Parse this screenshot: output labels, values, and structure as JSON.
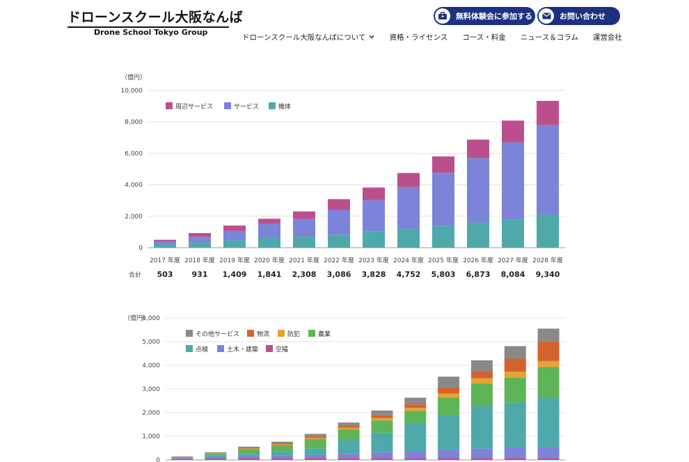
{
  "header": {
    "logo_jp": "ドローンスクール大阪なんば",
    "logo_en": "Drone School Tokyo Group",
    "btn_trial": "無料体験会に参加する",
    "btn_contact": "お問い合わせ",
    "nav": [
      "ドローンスクール大阪なんばについて",
      "資格・ライセンス",
      "コース・料金",
      "ニュース＆コラム",
      "運営会社"
    ]
  },
  "chart_data": [
    {
      "type": "bar",
      "stacked": true,
      "unit_label": "（億円）",
      "categories": [
        "2017 年度",
        "2018 年度",
        "2019 年度",
        "2020 年度",
        "2021 年度",
        "2022 年度",
        "2023 年度",
        "2024 年度",
        "2025 年度",
        "2026 年度",
        "2027 年度",
        "2028 年度"
      ],
      "series": [
        {
          "name": "機体",
          "color": "#4fa9ab",
          "values": [
            200,
            320,
            470,
            620,
            700,
            810,
            1050,
            1200,
            1400,
            1600,
            1800,
            2100
          ]
        },
        {
          "name": "サービス",
          "color": "#7b84d8",
          "values": [
            180,
            380,
            600,
            900,
            1130,
            1600,
            1970,
            2660,
            3370,
            4100,
            4900,
            5700
          ]
        },
        {
          "name": "周辺サービス",
          "color": "#bb4f8e",
          "values": [
            123,
            231,
            339,
            321,
            478,
            676,
            808,
            892,
            1033,
            1173,
            1384,
            1540
          ]
        }
      ],
      "totals_label": "合計",
      "totals": [
        "503",
        "931",
        "1,409",
        "1,841",
        "2,308",
        "3,086",
        "3,828",
        "4,752",
        "5,803",
        "6,873",
        "8,084",
        "9,340"
      ],
      "yticks": [
        "0",
        "2,000",
        "4,000",
        "6,000",
        "8,000",
        "10,000"
      ],
      "ylim": [
        0,
        10000
      ],
      "grid": true,
      "legend": "top-left"
    },
    {
      "type": "bar",
      "stacked": true,
      "unit_label": "（億円）",
      "series": [
        {
          "name": "空撮",
          "color": "#bb4f8e",
          "values": [
            50,
            60,
            70,
            70,
            80,
            80,
            80,
            80,
            80,
            80,
            80,
            80
          ]
        },
        {
          "name": "土木・建築",
          "color": "#7b84d8",
          "values": [
            30,
            60,
            90,
            110,
            130,
            180,
            250,
            300,
            350,
            400,
            450,
            450
          ]
        },
        {
          "name": "点検",
          "color": "#4fa9ab",
          "values": [
            20,
            60,
            100,
            170,
            270,
            580,
            820,
            1150,
            1450,
            1800,
            1900,
            2100
          ]
        },
        {
          "name": "農業",
          "color": "#5eb456",
          "values": [
            20,
            80,
            200,
            270,
            400,
            450,
            520,
            550,
            750,
            950,
            1050,
            1300
          ]
        },
        {
          "name": "防犯",
          "color": "#e8a132",
          "values": [
            5,
            10,
            20,
            30,
            50,
            70,
            100,
            120,
            180,
            220,
            250,
            250
          ]
        },
        {
          "name": "物流",
          "color": "#d2622e",
          "values": [
            5,
            10,
            20,
            40,
            60,
            80,
            120,
            150,
            250,
            300,
            550,
            830
          ]
        },
        {
          "name": "その他サービス",
          "color": "#8c8888",
          "values": [
            20,
            40,
            60,
            80,
            110,
            140,
            200,
            280,
            460,
            460,
            530,
            540
          ]
        }
      ],
      "yticks": [
        "0",
        "1,000",
        "2,000",
        "3,000",
        "4,000",
        "5,000",
        "6,000"
      ],
      "ylim": [
        0,
        6000
      ],
      "grid": true,
      "legend": "top-left"
    }
  ]
}
